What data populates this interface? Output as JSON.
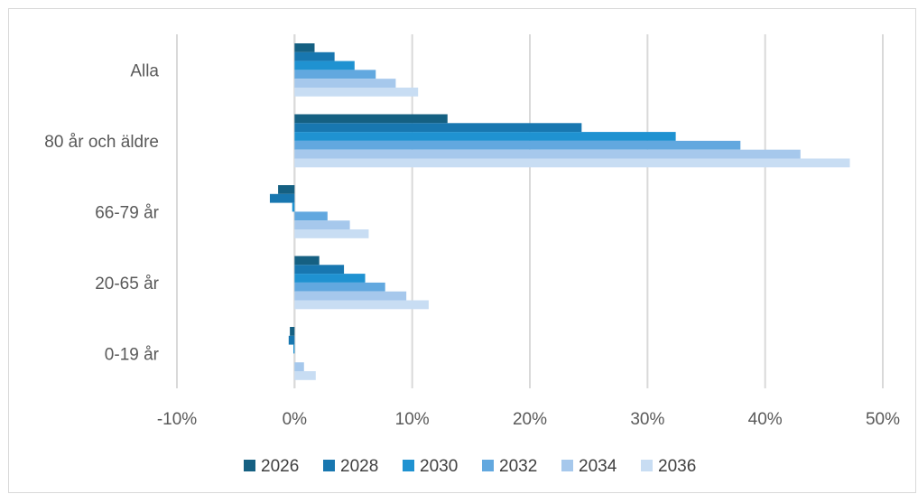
{
  "chart_data": {
    "type": "bar",
    "orientation": "horizontal",
    "categories": [
      "Alla",
      "80 år och äldre",
      "66-79 år",
      "20-65 år",
      "0-19 år"
    ],
    "series": [
      {
        "name": "2026",
        "color": "#156082",
        "values": [
          1.7,
          13.0,
          -1.4,
          2.1,
          -0.4
        ]
      },
      {
        "name": "2028",
        "color": "#1877b0",
        "values": [
          3.4,
          24.4,
          -2.1,
          4.2,
          -0.5
        ]
      },
      {
        "name": "2030",
        "color": "#1f92d1",
        "values": [
          5.1,
          32.4,
          -0.2,
          6.0,
          -0.1
        ]
      },
      {
        "name": "2032",
        "color": "#62a8df",
        "values": [
          6.9,
          37.9,
          2.8,
          7.7,
          0.0
        ]
      },
      {
        "name": "2034",
        "color": "#a6c8ec",
        "values": [
          8.6,
          43.0,
          4.7,
          9.5,
          0.8
        ]
      },
      {
        "name": "2036",
        "color": "#c8ddf3",
        "values": [
          10.5,
          47.2,
          6.3,
          11.4,
          1.8
        ]
      }
    ],
    "xlim": [
      -10,
      50
    ],
    "x_ticks": [
      -10,
      0,
      10,
      20,
      30,
      40,
      50
    ],
    "x_tick_labels": [
      "-10%",
      "0%",
      "10%",
      "20%",
      "30%",
      "40%",
      "50%"
    ],
    "gridlines": "vertical",
    "legend_position": "bottom"
  }
}
